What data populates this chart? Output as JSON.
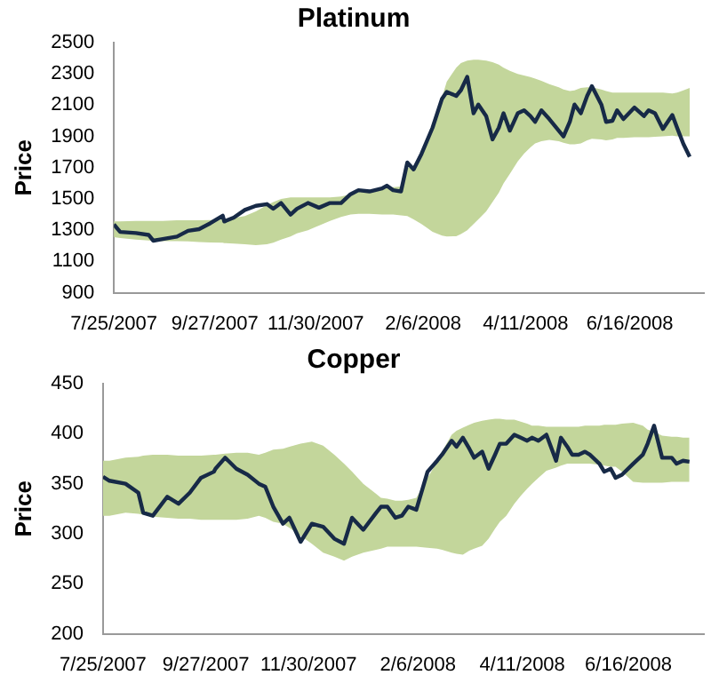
{
  "chart_data": [
    {
      "type": "line",
      "title": "Platinum",
      "ylabel": "Price",
      "ylim": [
        900,
        2500
      ],
      "yticks": [
        900,
        1100,
        1300,
        1500,
        1700,
        1900,
        2100,
        2300,
        2500
      ],
      "xlim": [
        "2007-07-25",
        "2008-08-02"
      ],
      "xticks": [
        {
          "value": "2007-07-25",
          "label": "7/25/2007"
        },
        {
          "value": "2007-09-27",
          "label": "9/27/2007"
        },
        {
          "value": "2007-11-30",
          "label": "11/30/2007"
        },
        {
          "value": "2008-02-06",
          "label": "2/6/2008"
        },
        {
          "value": "2008-04-11",
          "label": "4/11/2008"
        },
        {
          "value": "2008-06-16",
          "label": "6/16/2008"
        }
      ],
      "x": [
        "2007-07-25",
        "2007-07-29",
        "2007-08-08",
        "2007-08-16",
        "2007-08-19",
        "2007-08-25",
        "2007-09-03",
        "2007-09-10",
        "2007-09-17",
        "2007-09-24",
        "2007-10-02",
        "2007-10-03",
        "2007-10-09",
        "2007-10-16",
        "2007-10-23",
        "2007-10-30",
        "2007-11-03",
        "2007-11-08",
        "2007-11-14",
        "2007-11-18",
        "2007-11-25",
        "2007-12-02",
        "2007-12-09",
        "2007-12-16",
        "2007-12-22",
        "2007-12-27",
        "2008-01-03",
        "2008-01-11",
        "2008-01-14",
        "2008-01-18",
        "2008-01-23",
        "2008-01-27",
        "2008-01-31",
        "2008-02-05",
        "2008-02-12",
        "2008-02-18",
        "2008-02-21",
        "2008-02-27",
        "2008-03-01",
        "2008-03-05",
        "2008-03-09",
        "2008-03-12",
        "2008-03-17",
        "2008-03-21",
        "2008-03-25",
        "2008-03-28",
        "2008-04-01",
        "2008-04-06",
        "2008-04-10",
        "2008-04-14",
        "2008-04-17",
        "2008-04-21",
        "2008-04-26",
        "2008-05-02",
        "2008-05-05",
        "2008-05-09",
        "2008-05-12",
        "2008-05-16",
        "2008-05-20",
        "2008-05-23",
        "2008-05-29",
        "2008-06-01",
        "2008-06-05",
        "2008-06-08",
        "2008-06-12",
        "2008-06-19",
        "2008-06-25",
        "2008-06-28",
        "2008-07-02",
        "2008-07-07",
        "2008-07-13",
        "2008-07-16",
        "2008-07-20",
        "2008-07-24"
      ],
      "series": [
        {
          "color": "#172a47",
          "values": [
            1337,
            1289,
            1282,
            1270,
            1233,
            1244,
            1259,
            1296,
            1307,
            1344,
            1393,
            1356,
            1381,
            1430,
            1456,
            1467,
            1437,
            1474,
            1400,
            1437,
            1474,
            1444,
            1474,
            1474,
            1530,
            1556,
            1548,
            1567,
            1585,
            1556,
            1548,
            1733,
            1689,
            1789,
            1956,
            2141,
            2185,
            2159,
            2196,
            2281,
            2048,
            2104,
            2030,
            1881,
            1956,
            2048,
            1937,
            2048,
            2067,
            2030,
            1993,
            2067,
            2011,
            1937,
            1900,
            1993,
            2104,
            2048,
            2159,
            2222,
            2104,
            1993,
            2000,
            2067,
            2011,
            2085,
            2030,
            2067,
            2048,
            1948,
            2037,
            1956,
            1852,
            1770
          ],
          "upper": [
            1356,
            1356,
            1360,
            1360,
            1360,
            1360,
            1363,
            1363,
            1363,
            1365,
            1370,
            1372,
            1378,
            1390,
            1420,
            1460,
            1480,
            1500,
            1510,
            1510,
            1510,
            1510,
            1510,
            1515,
            1530,
            1550,
            1555,
            1560,
            1570,
            1575,
            1580,
            1700,
            1700,
            1800,
            1980,
            2150,
            2250,
            2340,
            2370,
            2385,
            2390,
            2390,
            2385,
            2375,
            2360,
            2340,
            2320,
            2300,
            2290,
            2280,
            2270,
            2255,
            2235,
            2215,
            2200,
            2190,
            2195,
            2210,
            2215,
            2215,
            2200,
            2190,
            2180,
            2180,
            2180,
            2180,
            2180,
            2180,
            2180,
            2180,
            2175,
            2180,
            2195,
            2210
          ],
          "lower": [
            1255,
            1250,
            1240,
            1235,
            1232,
            1230,
            1230,
            1228,
            1225,
            1222,
            1220,
            1218,
            1215,
            1210,
            1205,
            1210,
            1220,
            1240,
            1260,
            1280,
            1300,
            1330,
            1360,
            1385,
            1400,
            1405,
            1405,
            1400,
            1400,
            1400,
            1395,
            1390,
            1370,
            1340,
            1290,
            1265,
            1260,
            1262,
            1275,
            1300,
            1340,
            1370,
            1420,
            1480,
            1540,
            1600,
            1660,
            1740,
            1790,
            1830,
            1855,
            1870,
            1878,
            1870,
            1860,
            1850,
            1850,
            1855,
            1875,
            1885,
            1880,
            1875,
            1880,
            1890,
            1890,
            1895,
            1895,
            1895,
            1898,
            1900,
            1905,
            1900,
            1900,
            1900
          ]
        }
      ]
    },
    {
      "type": "line",
      "title": "Copper",
      "ylabel": "Price",
      "ylim": [
        200,
        450
      ],
      "yticks": [
        200,
        250,
        300,
        350,
        400,
        450
      ],
      "xlim": [
        "2007-07-25",
        "2008-08-02"
      ],
      "xticks": [
        {
          "value": "2007-07-25",
          "label": "7/25/2007"
        },
        {
          "value": "2007-09-27",
          "label": "9/27/2007"
        },
        {
          "value": "2007-11-30",
          "label": "11/30/2007"
        },
        {
          "value": "2008-02-06",
          "label": "2/6/2008"
        },
        {
          "value": "2008-04-11",
          "label": "4/11/2008"
        },
        {
          "value": "2008-06-16",
          "label": "6/16/2008"
        }
      ],
      "x": [
        "2007-07-25",
        "2007-07-29",
        "2007-08-08",
        "2007-08-16",
        "2007-08-19",
        "2007-08-25",
        "2007-09-03",
        "2007-09-10",
        "2007-09-17",
        "2007-09-24",
        "2007-10-02",
        "2007-10-03",
        "2007-10-09",
        "2007-10-16",
        "2007-10-23",
        "2007-10-30",
        "2007-11-03",
        "2007-11-08",
        "2007-11-14",
        "2007-11-18",
        "2007-11-25",
        "2007-12-02",
        "2007-12-09",
        "2007-12-16",
        "2007-12-22",
        "2007-12-27",
        "2008-01-03",
        "2008-01-11",
        "2008-01-14",
        "2008-01-18",
        "2008-01-23",
        "2008-01-27",
        "2008-01-31",
        "2008-02-05",
        "2008-02-12",
        "2008-02-18",
        "2008-02-21",
        "2008-02-27",
        "2008-03-01",
        "2008-03-05",
        "2008-03-09",
        "2008-03-12",
        "2008-03-17",
        "2008-03-21",
        "2008-03-25",
        "2008-03-28",
        "2008-04-01",
        "2008-04-06",
        "2008-04-10",
        "2008-04-14",
        "2008-04-17",
        "2008-04-21",
        "2008-04-26",
        "2008-05-02",
        "2008-05-05",
        "2008-05-09",
        "2008-05-12",
        "2008-05-16",
        "2008-05-20",
        "2008-05-23",
        "2008-05-29",
        "2008-06-01",
        "2008-06-05",
        "2008-06-08",
        "2008-06-12",
        "2008-06-19",
        "2008-06-25",
        "2008-06-28",
        "2008-07-02",
        "2008-07-07",
        "2008-07-13",
        "2008-07-16",
        "2008-07-20",
        "2008-07-24"
      ],
      "series": [
        {
          "color": "#172a47",
          "values": [
            357,
            353,
            350,
            341,
            321,
            318,
            337,
            330,
            341,
            356,
            362,
            365,
            376,
            365,
            359,
            350,
            347,
            327,
            310,
            316,
            292,
            310,
            307,
            295,
            290,
            316,
            304,
            321,
            327,
            327,
            316,
            318,
            327,
            324,
            362,
            373,
            379,
            393,
            387,
            396,
            385,
            376,
            382,
            365,
            379,
            390,
            390,
            399,
            396,
            393,
            396,
            393,
            399,
            373,
            396,
            387,
            379,
            379,
            382,
            379,
            370,
            362,
            365,
            356,
            359,
            370,
            379,
            390,
            408,
            376,
            376,
            370,
            373,
            372
          ],
          "upper": [
            373,
            373,
            376,
            377,
            378,
            379,
            379,
            378,
            378,
            378,
            379,
            379,
            380,
            381,
            381,
            379,
            381,
            384,
            385,
            387,
            390,
            392,
            388,
            379,
            370,
            362,
            350,
            340,
            336,
            335,
            333,
            333,
            334,
            336,
            356,
            372,
            382,
            399,
            403,
            406,
            409,
            411,
            413,
            414,
            415,
            415,
            414,
            414,
            412,
            410,
            408,
            408,
            407,
            407,
            407,
            407,
            407,
            407,
            408,
            408,
            408,
            409,
            409,
            409,
            410,
            411,
            408,
            404,
            402,
            398,
            397,
            397,
            396,
            396
          ],
          "lower": [
            318,
            318,
            321,
            320,
            319,
            317,
            316,
            315,
            315,
            314,
            314,
            314,
            314,
            314,
            315,
            318,
            316,
            312,
            310,
            306,
            298,
            290,
            281,
            277,
            273,
            277,
            281,
            284,
            285,
            287,
            287,
            287,
            287,
            287,
            286,
            285,
            284,
            281,
            280,
            279,
            283,
            285,
            288,
            295,
            305,
            312,
            318,
            330,
            338,
            345,
            350,
            356,
            363,
            366,
            368,
            370,
            370,
            370,
            370,
            370,
            369,
            368,
            367,
            367,
            362,
            352,
            351,
            351,
            351,
            351,
            352,
            352,
            352,
            352
          ]
        }
      ]
    }
  ]
}
